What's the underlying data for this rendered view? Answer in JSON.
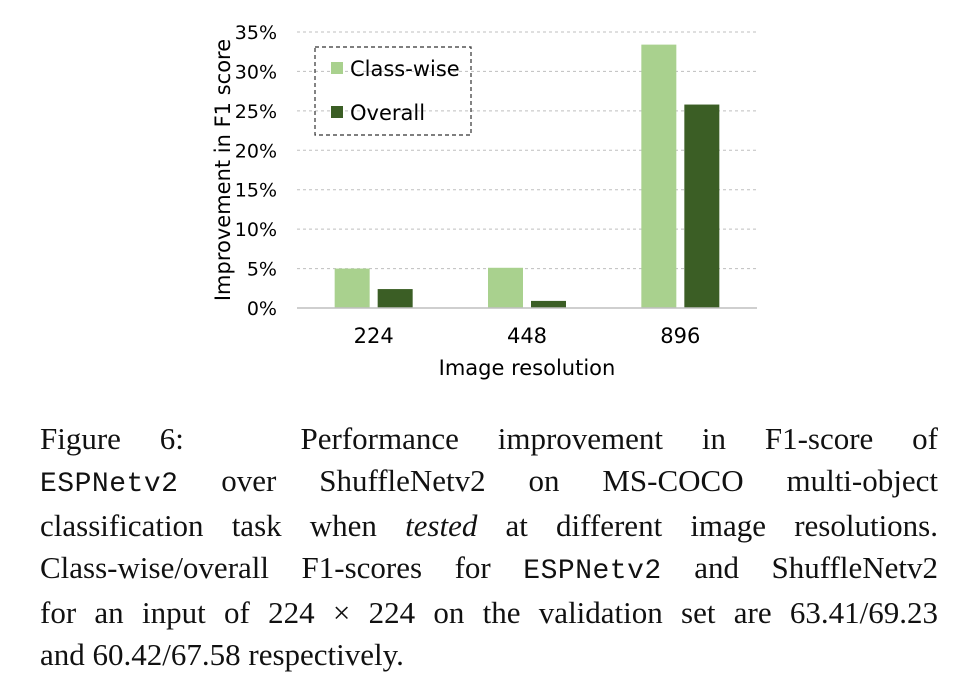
{
  "chart_data": {
    "type": "bar",
    "categories": [
      "224",
      "448",
      "896"
    ],
    "series": [
      {
        "name": "Class-wise",
        "values": [
          5.0,
          5.1,
          33.4
        ],
        "color": "#a9d18e"
      },
      {
        "name": "Overall",
        "values": [
          2.4,
          0.9,
          25.8
        ],
        "color": "#3b5e25"
      }
    ],
    "title": "",
    "xlabel": "Image resolution",
    "ylabel": "Improvement in F1 score",
    "ylim": [
      0,
      35
    ],
    "yticks": [
      0,
      5,
      10,
      15,
      20,
      25,
      30,
      35
    ],
    "ytick_labels": [
      "0%",
      "5%",
      "10%",
      "15%",
      "20%",
      "25%",
      "30%",
      "35%"
    ],
    "grid": true,
    "legend_placement": "top-left"
  },
  "caption": {
    "label": "Figure 6:",
    "lines": [
      [
        "Performance improvement in F1-score of"
      ],
      [
        "ESPNetv2",
        " over ShuffleNetv2 on MS-COCO multi-object"
      ],
      [
        "classification task when ",
        "tested",
        " at different image resolutions."
      ],
      [
        "Class-wise/overall F1-scores for ",
        "ESPNetv2",
        " and ShuffleNetv2"
      ],
      [
        "for an input of 224 × 224 on the validation set are 63.41/69.23"
      ],
      [
        "and 60.42/67.58 respectively."
      ]
    ]
  }
}
